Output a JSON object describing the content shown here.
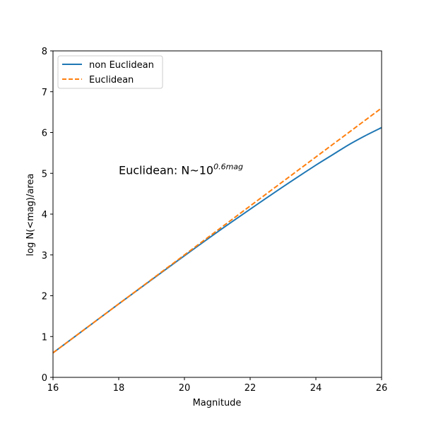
{
  "chart_data": {
    "type": "line",
    "title": "",
    "xlabel": "Magnitude",
    "ylabel": "log N(<mag)/area",
    "xlim": [
      16,
      26
    ],
    "ylim": [
      0,
      8
    ],
    "xticks": [
      16,
      18,
      20,
      22,
      24,
      26
    ],
    "yticks": [
      0,
      1,
      2,
      3,
      4,
      5,
      6,
      7,
      8
    ],
    "grid": false,
    "legend_position": "upper-left",
    "annotation": {
      "base": "Euclidean: N~10",
      "exponent": "0.6mag",
      "x": 18,
      "y": 5
    },
    "series": [
      {
        "name": "non Euclidean",
        "color": "#1f77b4",
        "linestyle": "solid",
        "x": [
          16,
          17,
          18,
          19,
          20,
          21,
          22,
          23,
          24,
          24.5,
          25,
          25.5,
          26
        ],
        "y": [
          0.6,
          1.2,
          1.8,
          2.39,
          2.98,
          3.56,
          4.12,
          4.67,
          5.2,
          5.45,
          5.7,
          5.92,
          6.12
        ]
      },
      {
        "name": "Euclidean",
        "color": "#ff7f0e",
        "linestyle": "dashed",
        "x": [
          16,
          26
        ],
        "y": [
          0.6,
          6.6
        ]
      }
    ]
  }
}
